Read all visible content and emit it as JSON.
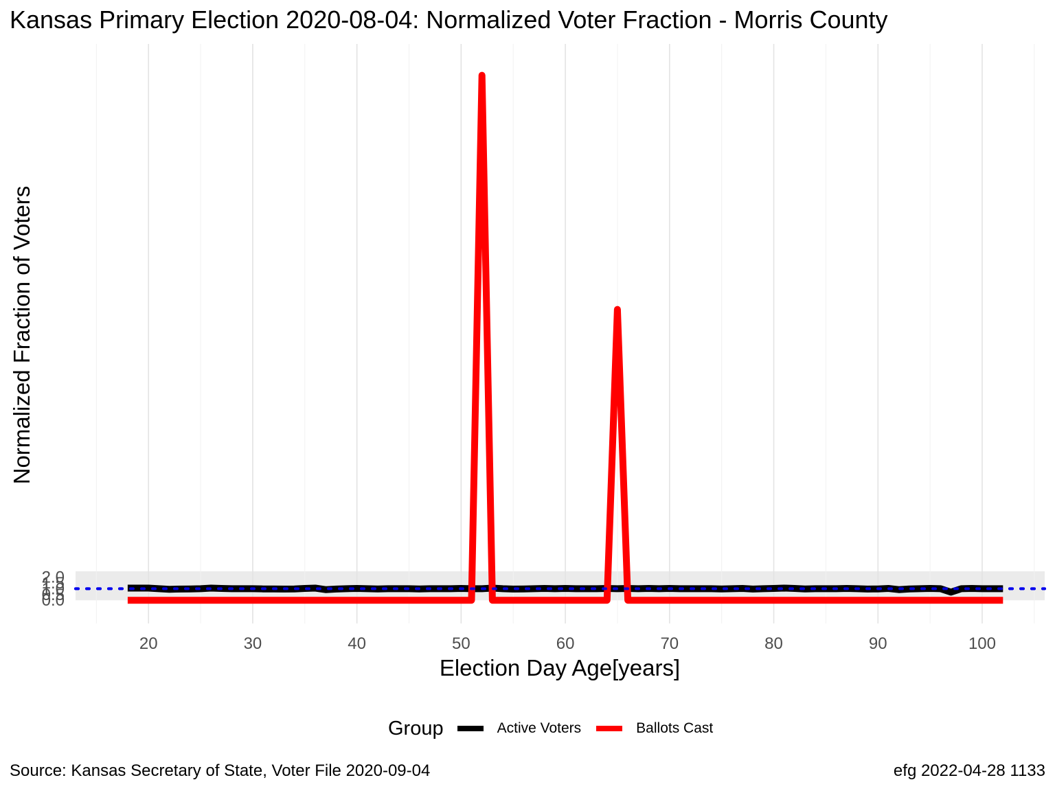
{
  "chart_data": {
    "type": "line",
    "title": "Kansas Primary Election 2020-08-04:  Normalized Voter Fraction - Morris County",
    "xlabel": "Election Day Age[years]",
    "ylabel": "Normalized Fraction of Voters",
    "xlim": [
      13,
      106
    ],
    "ylim": [
      -2,
      48
    ],
    "x_ticks": [
      20,
      30,
      40,
      50,
      60,
      70,
      80,
      90,
      100
    ],
    "y_ticks": [
      0,
      0.5,
      1,
      1.5,
      2
    ],
    "y_tick_labels": [
      "0.0",
      "0.5",
      "1.0",
      "1.5",
      "2.0"
    ],
    "reference_line": {
      "y": 1,
      "style": "dotted",
      "color": "#0000ee"
    },
    "shaded_band": {
      "y": [
        0,
        2.5
      ],
      "color": "#ebebeb"
    },
    "grid": true,
    "legend_position": "bottom",
    "legend_title": "Group",
    "x": [
      18,
      19,
      20,
      21,
      22,
      23,
      24,
      25,
      26,
      27,
      28,
      29,
      30,
      31,
      32,
      33,
      34,
      35,
      36,
      37,
      38,
      39,
      40,
      41,
      42,
      43,
      44,
      45,
      46,
      47,
      48,
      49,
      50,
      51,
      52,
      53,
      54,
      55,
      56,
      57,
      58,
      59,
      60,
      61,
      62,
      63,
      64,
      65,
      66,
      67,
      68,
      69,
      70,
      71,
      72,
      73,
      74,
      75,
      76,
      77,
      78,
      79,
      80,
      81,
      82,
      83,
      84,
      85,
      86,
      87,
      88,
      89,
      90,
      91,
      92,
      93,
      94,
      95,
      96,
      97,
      98,
      99,
      100,
      101,
      102
    ],
    "series": [
      {
        "name": "Active Voters",
        "color": "#000000",
        "values": [
          1.05,
          1.05,
          1.05,
          1.0,
          0.95,
          0.97,
          0.98,
          1.0,
          1.05,
          1.02,
          1.0,
          1.0,
          1.0,
          0.98,
          0.98,
          0.97,
          0.98,
          1.02,
          1.05,
          0.92,
          0.97,
          1.0,
          1.02,
          1.0,
          0.98,
          1.0,
          1.0,
          1.0,
          0.98,
          1.0,
          1.0,
          1.0,
          1.02,
          1.0,
          1.0,
          1.05,
          1.0,
          0.97,
          0.98,
          1.0,
          1.02,
          1.0,
          1.02,
          1.0,
          1.0,
          1.0,
          1.02,
          1.0,
          1.02,
          1.0,
          1.02,
          1.0,
          1.02,
          1.0,
          1.0,
          1.0,
          1.0,
          0.98,
          1.0,
          1.02,
          0.97,
          1.0,
          1.02,
          1.05,
          1.02,
          0.98,
          1.0,
          1.0,
          1.0,
          1.02,
          1.0,
          0.97,
          0.98,
          1.02,
          0.92,
          0.98,
          1.0,
          1.02,
          1.0,
          0.7,
          1.0,
          1.02,
          1.0,
          1.0,
          1.0
        ]
      },
      {
        "name": "Ballots Cast",
        "color": "#ff0000",
        "values": [
          0,
          0,
          0,
          0,
          0,
          0,
          0,
          0,
          0,
          0,
          0,
          0,
          0,
          0,
          0,
          0,
          0,
          0,
          0,
          0,
          0,
          0,
          0,
          0,
          0,
          0,
          0,
          0,
          0,
          0,
          0,
          0,
          0,
          0,
          45.3,
          0,
          0,
          0,
          0,
          0,
          0,
          0,
          0,
          0,
          0,
          0,
          0,
          25.1,
          0,
          0,
          0,
          0,
          0,
          0,
          0,
          0,
          0,
          0,
          0,
          0,
          0,
          0,
          0,
          0,
          0,
          0,
          0,
          0,
          0,
          0,
          0,
          0,
          0,
          0,
          0,
          0,
          0,
          0,
          0,
          0,
          0,
          0,
          0,
          0,
          0
        ]
      }
    ]
  },
  "footer": {
    "source": "Source:  Kansas Secretary of State, Voter File  2020-09-04",
    "stamp": "efg 2022-04-28 1133"
  }
}
